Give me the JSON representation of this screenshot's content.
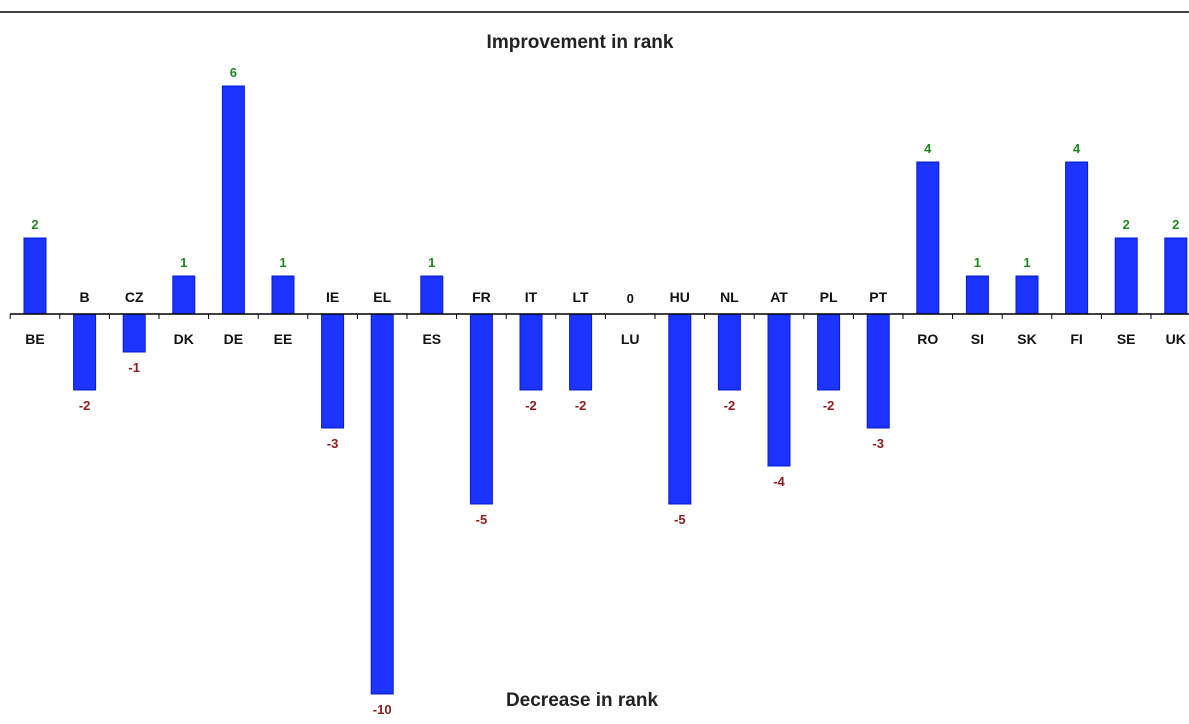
{
  "chart_data": {
    "type": "bar",
    "title": "Improvement in rank",
    "bottom_title": "Decrease in rank",
    "categories": [
      "BE",
      "B",
      "CZ",
      "DK",
      "DE",
      "EE",
      "IE",
      "EL",
      "ES",
      "FR",
      "IT",
      "LT",
      "LU",
      "HU",
      "NL",
      "AT",
      "PL",
      "PT",
      "RO",
      "SI",
      "SK",
      "FI",
      "SE",
      "UK"
    ],
    "values": [
      2,
      -2,
      -1,
      1,
      6,
      1,
      -3,
      -10,
      1,
      -5,
      -2,
      -2,
      0,
      -5,
      -2,
      -4,
      -2,
      -3,
      4,
      1,
      1,
      4,
      2,
      2
    ],
    "value_labels": [
      "2",
      "-2",
      "-1",
      "1",
      "6",
      "1",
      "-3",
      "-10",
      "1",
      "-5",
      "-2",
      "-2",
      "0",
      "-5",
      "-2",
      "-4",
      "-2",
      "-3",
      "4",
      "1",
      "1",
      "4",
      "2",
      "2"
    ],
    "ylim": [
      -10,
      6
    ],
    "grid": false,
    "legend": "none",
    "colors": {
      "bar": "#1a33ff",
      "bar_edge": "#0b1bcc",
      "positive_label": "#1e8a1e",
      "negative_label": "#8b1a1a",
      "zero_label": "#111111",
      "axis": "#000000",
      "top_rule": "#000000"
    }
  }
}
